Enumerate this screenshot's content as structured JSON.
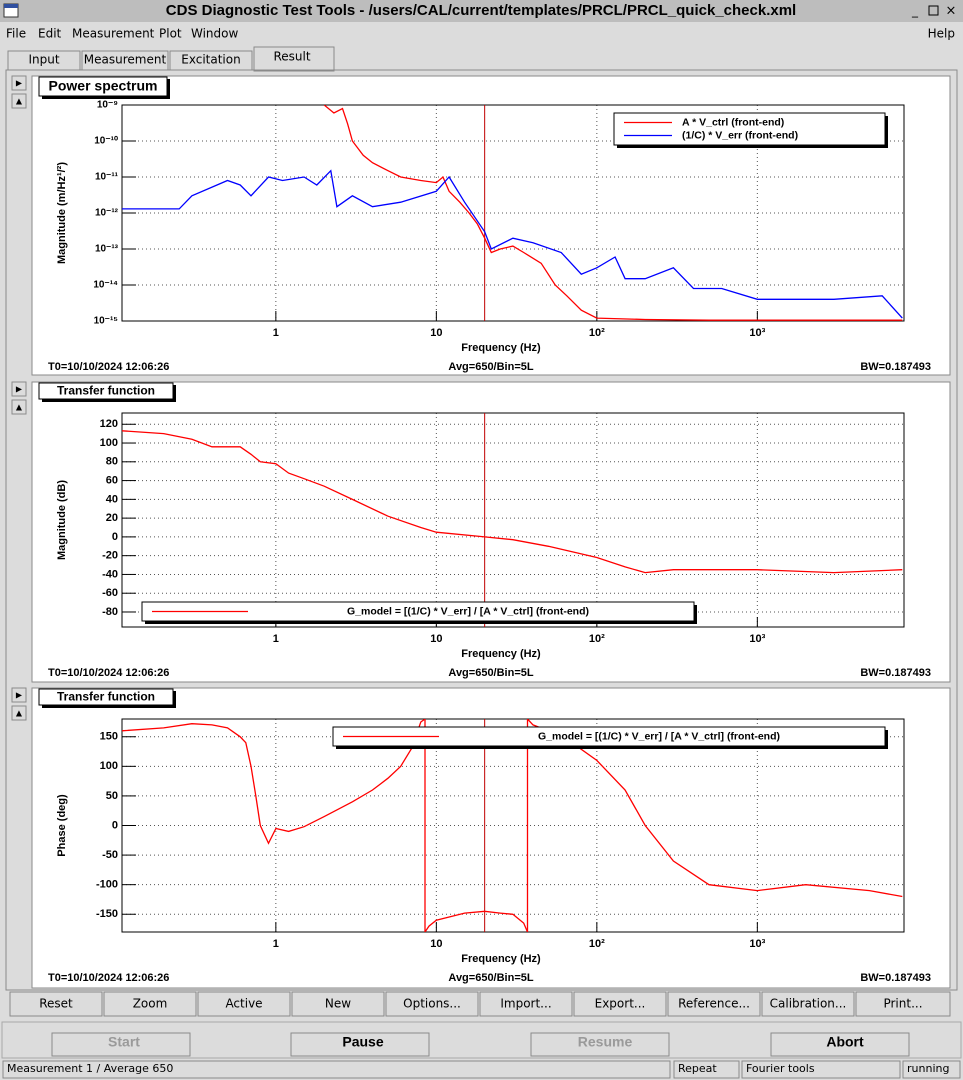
{
  "window": {
    "title": "CDS Diagnostic Test Tools - /users/CAL/current/templates/PRCL/PRCL_quick_check.xml"
  },
  "menu": [
    "File",
    "Edit",
    "Measurement",
    "Plot",
    "Window",
    "Help"
  ],
  "tabs": [
    "Input",
    "Measurement",
    "Excitation",
    "Result"
  ],
  "chart_data": [
    {
      "type": "line",
      "title": "Power spectrum",
      "xlabel": "Frequency (Hz)",
      "ylabel": "Magnitude (m/Hz¹/²)",
      "xlog": true,
      "ylog": true,
      "grid": true,
      "legend": "top-right",
      "xlim": [
        0.11,
        8200
      ],
      "xticks": [
        1,
        10,
        {
          "value": 100,
          "label": "10²"
        },
        {
          "value": 1000,
          "label": "10³"
        }
      ],
      "ylim": [
        1e-15,
        1e-09
      ],
      "yticks": [
        {
          "value": 1e-15,
          "label": "10⁻¹⁵"
        },
        {
          "value": 1e-14,
          "label": "10⁻¹⁴"
        },
        {
          "value": 1e-13,
          "label": "10⁻¹³"
        },
        {
          "value": 1e-12,
          "label": "10⁻¹²"
        },
        {
          "value": 1e-11,
          "label": "10⁻¹¹"
        },
        {
          "value": 1e-10,
          "label": "10⁻¹⁰"
        },
        {
          "value": 1e-09,
          "label": "10⁻⁹"
        }
      ],
      "cursor_x": 20,
      "series": [
        {
          "name": "A * V_ctrl (front-end)",
          "color": "#ff0000",
          "x": [
            2,
            2.3,
            2.6,
            2.8,
            3,
            3.5,
            4,
            5,
            6,
            8,
            10,
            11,
            12,
            14,
            16,
            18,
            20,
            22,
            25,
            30,
            35,
            45,
            55,
            65,
            80,
            100,
            200,
            500,
            1000,
            3000,
            8000
          ],
          "values": [
            1e-09,
            6e-10,
            8e-10,
            3e-10,
            1e-10,
            4e-11,
            2.5e-11,
            1.5e-11,
            1e-11,
            8e-12,
            7e-12,
            1e-11,
            4e-12,
            2e-12,
            1e-12,
            5e-13,
            2e-13,
            8e-14,
            1e-13,
            1.2e-13,
            8e-14,
            4e-14,
            1e-14,
            5e-15,
            2e-15,
            1.2e-15,
            1.1e-15,
            1.05e-15,
            1.05e-15,
            1.05e-15,
            1.05e-15
          ]
        },
        {
          "name": "(1/C) * V_err (front-end)",
          "color": "#0000ff",
          "x": [
            0.11,
            0.25,
            0.3,
            0.5,
            0.6,
            0.7,
            0.9,
            1.1,
            1.5,
            1.8,
            2.2,
            2.4,
            3,
            4,
            6,
            10,
            12,
            15,
            20,
            22,
            30,
            40,
            60,
            80,
            100,
            130,
            150,
            200,
            300,
            400,
            600,
            1000,
            3000,
            6000,
            8000
          ],
          "values": [
            1.3e-12,
            1.3e-12,
            3e-12,
            8e-12,
            6e-12,
            3e-12,
            1e-11,
            8e-12,
            1e-11,
            6e-12,
            1.5e-11,
            1.5e-12,
            3e-12,
            1.5e-12,
            2e-12,
            4e-12,
            1e-11,
            2e-12,
            3e-13,
            1e-13,
            2e-13,
            1.5e-13,
            8e-14,
            2e-14,
            3e-14,
            6e-14,
            1.5e-14,
            1.5e-14,
            3e-14,
            8e-15,
            8e-15,
            4e-15,
            4e-15,
            5e-15,
            1.2e-15
          ]
        }
      ],
      "info": [
        "T0=10/10/2024 12:06:26",
        "Avg=650/Bin=5L",
        "BW=0.187493"
      ]
    },
    {
      "type": "line",
      "title": "Transfer function",
      "xlabel": "Frequency (Hz)",
      "ylabel": "Magnitude (dB)",
      "xlog": true,
      "ylog": false,
      "grid": true,
      "legend": "bottom-left",
      "xlim": [
        0.11,
        8200
      ],
      "xticks": [
        1,
        10,
        {
          "value": 100,
          "label": "10²"
        },
        {
          "value": 1000,
          "label": "10³"
        }
      ],
      "ylim": [
        -96,
        132
      ],
      "yticks": [
        -80,
        -60,
        -40,
        -20,
        0,
        20,
        40,
        60,
        80,
        100,
        120
      ],
      "cursor_x": 20,
      "series": [
        {
          "name": "G_model = [(1/C) * V_err] / [A * V_ctrl] (front-end)",
          "color": "#ff0000",
          "x": [
            0.11,
            0.2,
            0.3,
            0.4,
            0.6,
            0.7,
            0.8,
            1,
            1.2,
            1.5,
            2,
            3,
            5,
            8,
            10,
            20,
            30,
            50,
            100,
            150,
            200,
            300,
            500,
            1000,
            3000,
            8000
          ],
          "values": [
            113,
            110,
            104,
            96,
            96,
            88,
            80,
            78,
            68,
            62,
            54,
            40,
            22,
            10,
            5,
            0,
            -3,
            -10,
            -22,
            -32,
            -38,
            -35,
            -35,
            -35,
            -38,
            -35
          ]
        }
      ],
      "info": [
        "T0=10/10/2024 12:06:26",
        "Avg=650/Bin=5L",
        "BW=0.187493"
      ]
    },
    {
      "type": "line",
      "title": "Transfer function",
      "xlabel": "Frequency (Hz)",
      "ylabel": "Phase (deg)",
      "xlog": true,
      "ylog": false,
      "grid": true,
      "legend": "top-right",
      "xlim": [
        0.11,
        8200
      ],
      "xticks": [
        1,
        10,
        {
          "value": 100,
          "label": "10²"
        },
        {
          "value": 1000,
          "label": "10³"
        }
      ],
      "ylim": [
        -180,
        180
      ],
      "yticks": [
        -150,
        -100,
        -50,
        0,
        50,
        100,
        150
      ],
      "cursor_x": 20,
      "series": [
        {
          "name": "G_model = [(1/C) * V_err] / [A * V_ctrl] (front-end)",
          "color": "#ff0000",
          "x": [
            0.11,
            0.2,
            0.3,
            0.4,
            0.5,
            0.6,
            0.65,
            0.7,
            0.75,
            0.8,
            0.9,
            1,
            1.2,
            1.5,
            2,
            3,
            4,
            5,
            6,
            7,
            8,
            8.5,
            8.5,
            9,
            10,
            15,
            20,
            25,
            30,
            35,
            37,
            37,
            40,
            50,
            70,
            100,
            150,
            200,
            300,
            500,
            1000,
            2000,
            5000,
            8000
          ],
          "values": [
            160,
            165,
            172,
            170,
            165,
            150,
            140,
            100,
            50,
            0,
            -30,
            -5,
            -10,
            -2,
            15,
            40,
            60,
            80,
            100,
            130,
            175,
            180,
            -180,
            -170,
            -160,
            -148,
            -145,
            -148,
            -150,
            -165,
            -180,
            180,
            170,
            160,
            140,
            110,
            60,
            0,
            -60,
            -100,
            -110,
            -100,
            -110,
            -120
          ]
        }
      ],
      "info": [
        "T0=10/10/2024 12:06:26",
        "Avg=650/Bin=5L",
        "BW=0.187493"
      ]
    }
  ],
  "buttons": [
    "Reset",
    "Zoom",
    "Active",
    "New",
    "Options...",
    "Import...",
    "Export...",
    "Reference...",
    "Calibration...",
    "Print..."
  ],
  "controls": [
    "Start",
    "Pause",
    "Resume",
    "Abort"
  ],
  "status": [
    "Measurement 1 / Average 650",
    "Repeat",
    "Fourier tools",
    "running"
  ]
}
